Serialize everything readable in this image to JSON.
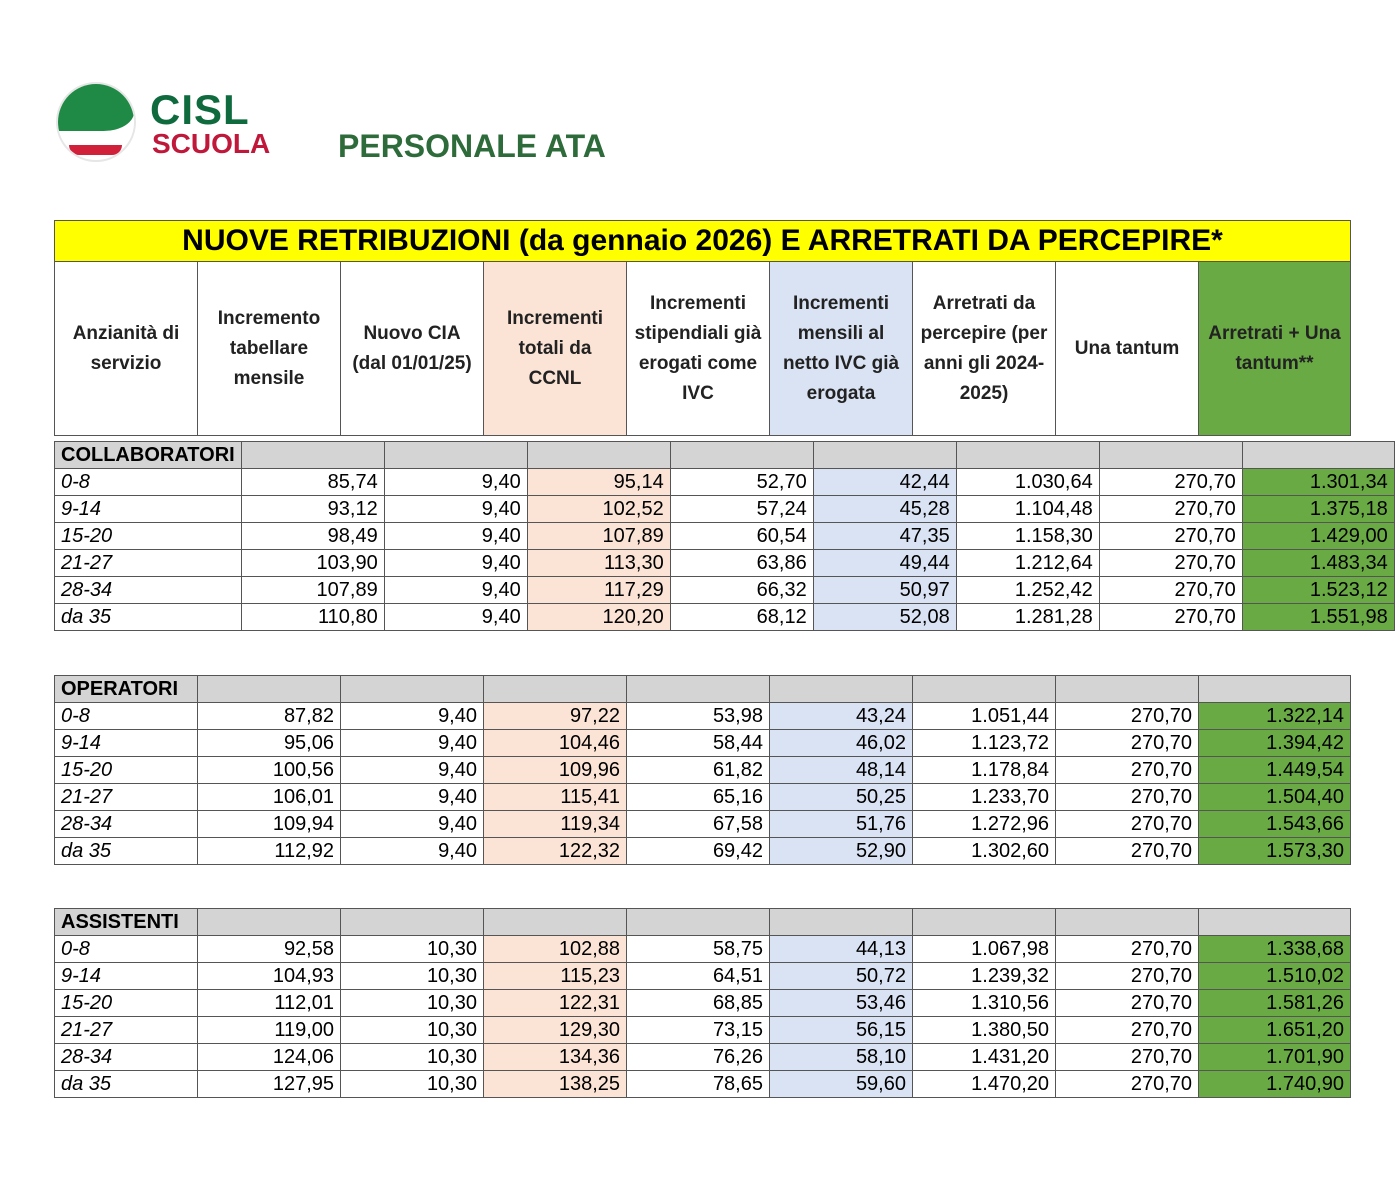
{
  "logo": {
    "line1": "CISL",
    "line2": "SCUOLA"
  },
  "subtitle": "PERSONALE ATA",
  "table_title": "NUOVE RETRIBUZIONI (da gennaio 2026) E ARRETRATI DA PERCEPIRE*",
  "headers": [
    "Anzianità di servizio",
    "Incremento tabellare mensile",
    "Nuovo CIA (dal 01/01/25)",
    "Incrementi totali da CCNL",
    "Incrementi stipendiali già erogati come IVC",
    "Incrementi mensili al netto IVC già erogata",
    "Arretrati da percepire (per anni gli 2024-2025)",
    "Una tantum",
    "Arretrati + Una tantum**"
  ],
  "sections": [
    {
      "name": "COLLABORATORI",
      "rows": [
        [
          "0-8",
          "85,74",
          "9,40",
          "95,14",
          "52,70",
          "42,44",
          "1.030,64",
          "270,70",
          "1.301,34"
        ],
        [
          "9-14",
          "93,12",
          "9,40",
          "102,52",
          "57,24",
          "45,28",
          "1.104,48",
          "270,70",
          "1.375,18"
        ],
        [
          "15-20",
          "98,49",
          "9,40",
          "107,89",
          "60,54",
          "47,35",
          "1.158,30",
          "270,70",
          "1.429,00"
        ],
        [
          "21-27",
          "103,90",
          "9,40",
          "113,30",
          "63,86",
          "49,44",
          "1.212,64",
          "270,70",
          "1.483,34"
        ],
        [
          "28-34",
          "107,89",
          "9,40",
          "117,29",
          "66,32",
          "50,97",
          "1.252,42",
          "270,70",
          "1.523,12"
        ],
        [
          "da 35",
          "110,80",
          "9,40",
          "120,20",
          "68,12",
          "52,08",
          "1.281,28",
          "270,70",
          "1.551,98"
        ]
      ]
    },
    {
      "name": "OPERATORI",
      "rows": [
        [
          "0-8",
          "87,82",
          "9,40",
          "97,22",
          "53,98",
          "43,24",
          "1.051,44",
          "270,70",
          "1.322,14"
        ],
        [
          "9-14",
          "95,06",
          "9,40",
          "104,46",
          "58,44",
          "46,02",
          "1.123,72",
          "270,70",
          "1.394,42"
        ],
        [
          "15-20",
          "100,56",
          "9,40",
          "109,96",
          "61,82",
          "48,14",
          "1.178,84",
          "270,70",
          "1.449,54"
        ],
        [
          "21-27",
          "106,01",
          "9,40",
          "115,41",
          "65,16",
          "50,25",
          "1.233,70",
          "270,70",
          "1.504,40"
        ],
        [
          "28-34",
          "109,94",
          "9,40",
          "119,34",
          "67,58",
          "51,76",
          "1.272,96",
          "270,70",
          "1.543,66"
        ],
        [
          "da 35",
          "112,92",
          "9,40",
          "122,32",
          "69,42",
          "52,90",
          "1.302,60",
          "270,70",
          "1.573,30"
        ]
      ]
    },
    {
      "name": "ASSISTENTI",
      "rows": [
        [
          "0-8",
          "92,58",
          "10,30",
          "102,88",
          "58,75",
          "44,13",
          "1.067,98",
          "270,70",
          "1.338,68"
        ],
        [
          "9-14",
          "104,93",
          "10,30",
          "115,23",
          "64,51",
          "50,72",
          "1.239,32",
          "270,70",
          "1.510,02"
        ],
        [
          "15-20",
          "112,01",
          "10,30",
          "122,31",
          "68,85",
          "53,46",
          "1.310,56",
          "270,70",
          "1.581,26"
        ],
        [
          "21-27",
          "119,00",
          "10,30",
          "129,30",
          "73,15",
          "56,15",
          "1.380,50",
          "270,70",
          "1.651,20"
        ],
        [
          "28-34",
          "124,06",
          "10,30",
          "134,36",
          "76,26",
          "58,10",
          "1.431,20",
          "270,70",
          "1.701,90"
        ],
        [
          "da 35",
          "127,95",
          "10,30",
          "138,25",
          "78,65",
          "59,60",
          "1.470,20",
          "270,70",
          "1.740,90"
        ]
      ]
    }
  ]
}
